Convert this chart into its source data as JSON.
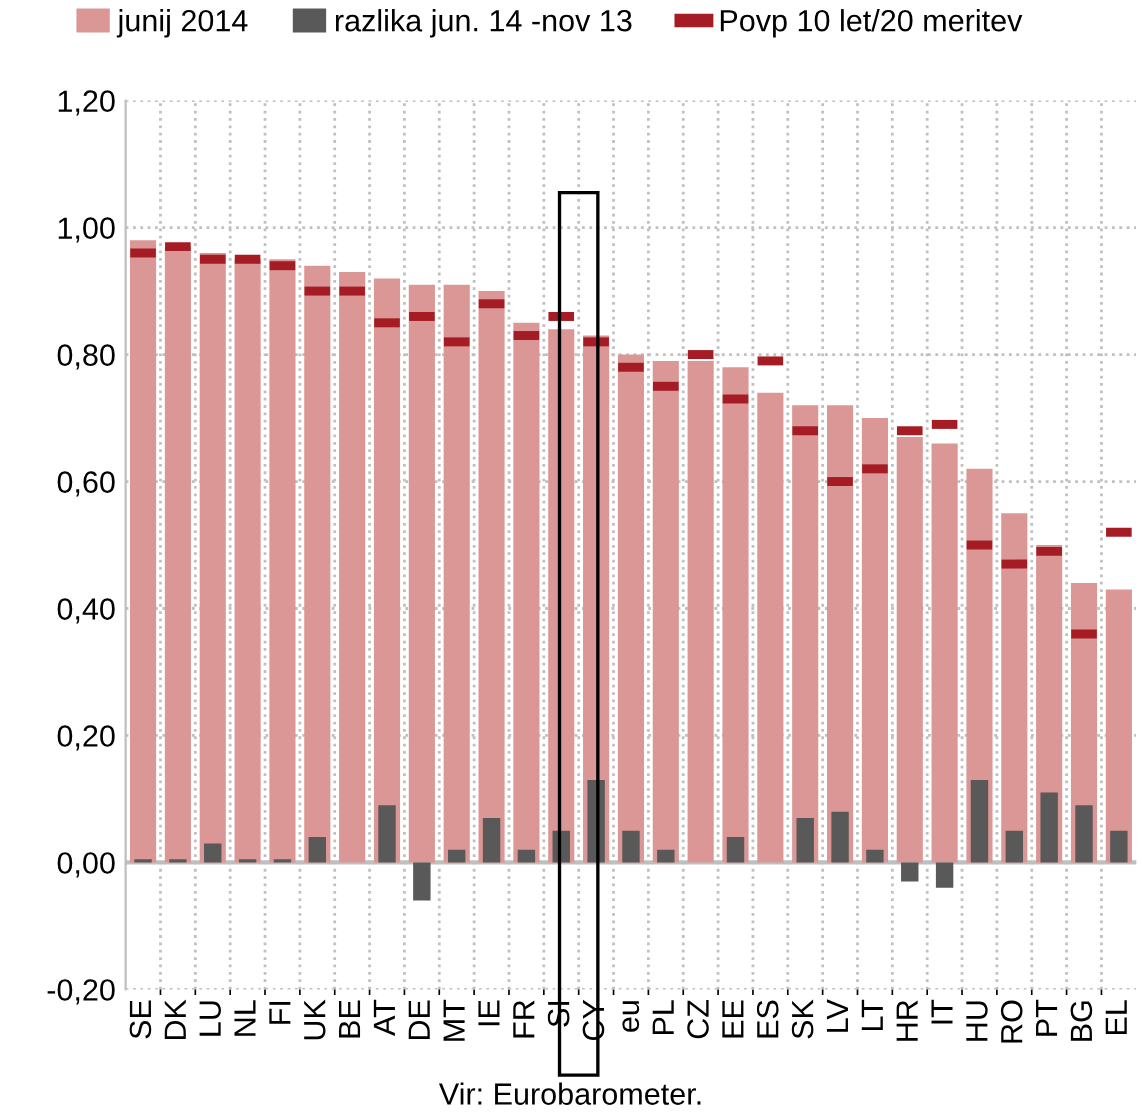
{
  "chart_data": {
    "type": "bar",
    "categories": [
      "SE",
      "DK",
      "LU",
      "NL",
      "FI",
      "UK",
      "BE",
      "AT",
      "DE",
      "MT",
      "IE",
      "FR",
      "SI",
      "CY",
      "eu",
      "PL",
      "CZ",
      "EE",
      "ES",
      "SK",
      "LV",
      "LT",
      "HR",
      "IT",
      "HU",
      "RO",
      "PT",
      "BG",
      "EL"
    ],
    "series": [
      {
        "name": "junij 2014",
        "color": "#da9796",
        "values": [
          0.98,
          0.97,
          0.96,
          0.95,
          0.95,
          0.94,
          0.93,
          0.92,
          0.91,
          0.91,
          0.9,
          0.85,
          0.84,
          0.83,
          0.8,
          0.79,
          0.79,
          0.78,
          0.74,
          0.72,
          0.72,
          0.7,
          0.67,
          0.66,
          0.62,
          0.55,
          0.5,
          0.44,
          0.43
        ]
      },
      {
        "name": "razlika jun. 14 -nov 13",
        "color": "#595959",
        "values": [
          0.005,
          0.005,
          0.03,
          0.005,
          0.005,
          0.04,
          0.0,
          0.09,
          -0.06,
          0.02,
          0.07,
          0.02,
          0.05,
          0.13,
          0.05,
          0.02,
          0.0,
          0.04,
          0.0,
          0.07,
          0.08,
          0.02,
          -0.03,
          -0.04,
          0.13,
          0.05,
          0.11,
          0.09,
          0.05
        ]
      },
      {
        "name": "Povp 10 let/20 meritev",
        "type": "scatter",
        "color": "#a51c24",
        "values": [
          0.96,
          0.97,
          0.95,
          0.95,
          0.94,
          0.9,
          0.9,
          0.85,
          0.86,
          0.82,
          0.88,
          0.83,
          0.86,
          0.82,
          0.78,
          0.75,
          0.8,
          0.73,
          0.79,
          0.68,
          0.6,
          0.62,
          0.68,
          0.69,
          0.5,
          0.47,
          0.49,
          0.36,
          0.52
        ]
      }
    ],
    "ylim": [
      -0.2,
      1.2
    ],
    "yticks": [
      {
        "value": -0.2,
        "label": "-0,20"
      },
      {
        "value": 0,
        "label": "0,00"
      },
      {
        "value": 0.2,
        "label": "0,20"
      },
      {
        "value": 0.4,
        "label": "0,40"
      },
      {
        "value": 0.6,
        "label": "0,60"
      },
      {
        "value": 0.8,
        "label": "0,80"
      },
      {
        "value": 1.0,
        "label": "1,00"
      },
      {
        "value": 1.2,
        "label": "1,20"
      }
    ],
    "grid": true,
    "legend": "top",
    "annotations": [
      "Vir: Eurobarometer."
    ]
  }
}
